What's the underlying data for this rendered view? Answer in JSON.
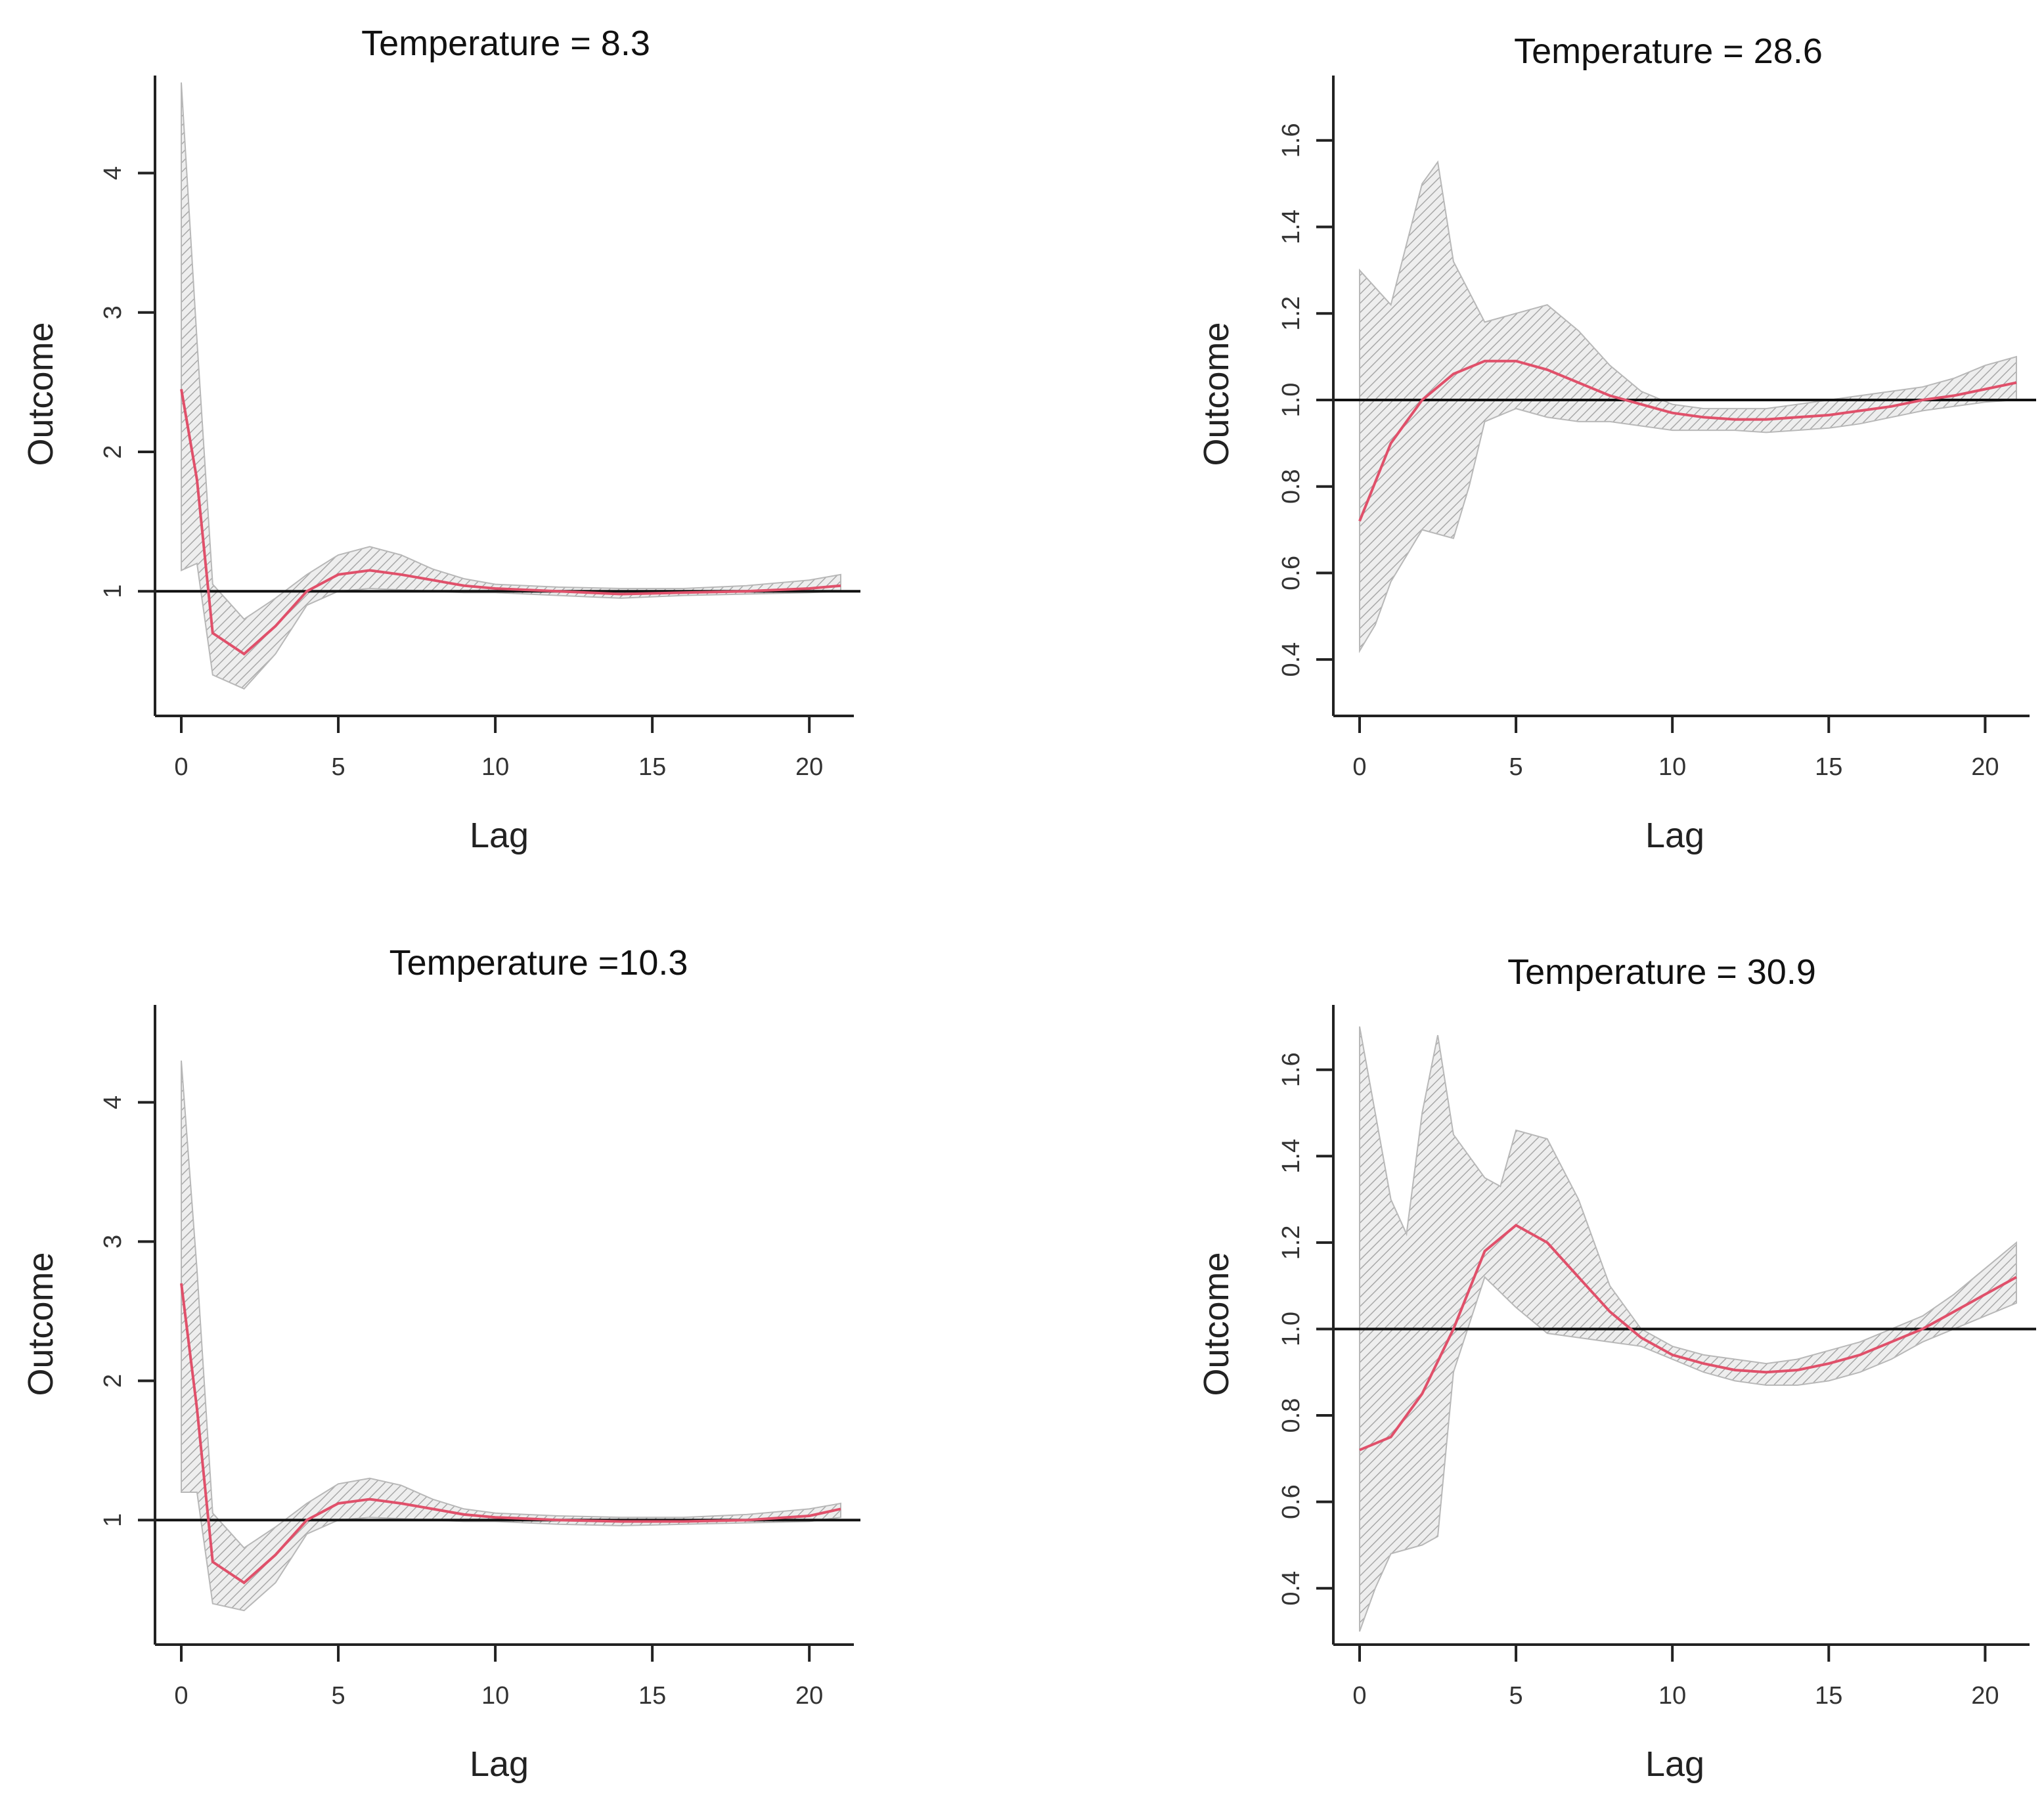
{
  "chart_data": [
    {
      "type": "line",
      "title": "Temperature = 8.3",
      "xlabel": "Lag",
      "ylabel": "Outcome",
      "xlim": [
        0,
        21
      ],
      "ylim": [
        0.2,
        4.7
      ],
      "xticks": [
        0,
        5,
        10,
        15,
        20
      ],
      "yticks": [
        1,
        2,
        3,
        4
      ],
      "reference_y": 1,
      "series": [
        {
          "name": "estimate",
          "x": [
            0,
            0.5,
            1,
            2,
            3,
            4,
            5,
            6,
            7,
            8,
            9,
            10,
            12,
            14,
            16,
            18,
            20,
            21
          ],
          "values": [
            2.45,
            1.8,
            0.7,
            0.55,
            0.75,
            1.0,
            1.12,
            1.15,
            1.12,
            1.08,
            1.04,
            1.02,
            1.0,
            0.98,
            0.99,
            1.0,
            1.02,
            1.04
          ]
        },
        {
          "name": "ci_upper",
          "x": [
            0,
            0.5,
            1,
            2,
            3,
            4,
            5,
            6,
            7,
            8,
            9,
            10,
            12,
            14,
            16,
            18,
            20,
            21
          ],
          "values": [
            4.65,
            2.8,
            1.05,
            0.8,
            0.95,
            1.12,
            1.26,
            1.32,
            1.26,
            1.16,
            1.09,
            1.05,
            1.03,
            1.02,
            1.02,
            1.04,
            1.08,
            1.12
          ]
        },
        {
          "name": "ci_lower",
          "x": [
            0,
            0.5,
            1,
            2,
            3,
            4,
            5,
            6,
            7,
            8,
            9,
            10,
            12,
            14,
            16,
            18,
            20,
            21
          ],
          "values": [
            1.15,
            1.2,
            0.4,
            0.3,
            0.55,
            0.9,
            1.0,
            1.02,
            1.01,
            1.0,
            0.99,
            0.99,
            0.97,
            0.95,
            0.97,
            0.98,
            0.99,
            1.0
          ]
        }
      ]
    },
    {
      "type": "line",
      "title": "Temperature = 28.6",
      "xlabel": "Lag",
      "ylabel": "Outcome",
      "xlim": [
        0,
        21
      ],
      "ylim": [
        0.3,
        1.75
      ],
      "xticks": [
        0,
        5,
        10,
        15,
        20
      ],
      "yticks": [
        "0.4",
        "0.6",
        "0.8",
        "1.0",
        "1.2",
        "1.4",
        "1.6"
      ],
      "reference_y": 1.0,
      "series": [
        {
          "name": "estimate",
          "x": [
            0,
            1,
            2,
            3,
            4,
            5,
            6,
            7,
            8,
            9,
            10,
            11,
            12,
            13,
            14,
            15,
            16,
            17,
            18,
            19,
            20,
            21
          ],
          "values": [
            0.72,
            0.9,
            1.0,
            1.06,
            1.09,
            1.09,
            1.07,
            1.04,
            1.01,
            0.99,
            0.97,
            0.96,
            0.955,
            0.955,
            0.96,
            0.965,
            0.975,
            0.985,
            1.0,
            1.01,
            1.025,
            1.04
          ]
        },
        {
          "name": "ci_upper",
          "x": [
            0,
            1,
            2,
            2.5,
            3,
            4,
            5,
            6,
            7,
            8,
            9,
            10,
            11,
            12,
            13,
            14,
            15,
            16,
            17,
            18,
            19,
            20,
            21
          ],
          "values": [
            1.3,
            1.22,
            1.5,
            1.55,
            1.32,
            1.18,
            1.2,
            1.22,
            1.16,
            1.08,
            1.02,
            0.99,
            0.98,
            0.98,
            0.98,
            0.99,
            1.0,
            1.01,
            1.02,
            1.03,
            1.05,
            1.08,
            1.1
          ]
        },
        {
          "name": "ci_lower",
          "x": [
            0,
            0.5,
            1,
            2,
            3,
            3.5,
            4,
            5,
            6,
            7,
            8,
            9,
            10,
            11,
            12,
            13,
            14,
            15,
            16,
            17,
            18,
            19,
            20,
            21
          ],
          "values": [
            0.42,
            0.48,
            0.58,
            0.7,
            0.68,
            0.8,
            0.95,
            0.98,
            0.96,
            0.95,
            0.95,
            0.94,
            0.93,
            0.93,
            0.93,
            0.925,
            0.93,
            0.935,
            0.945,
            0.96,
            0.975,
            0.985,
            0.995,
            1.0
          ]
        }
      ]
    },
    {
      "type": "line",
      "title": "Temperature =10.3",
      "xlabel": "Lag",
      "ylabel": "Outcome",
      "xlim": [
        0,
        21
      ],
      "ylim": [
        0.2,
        4.7
      ],
      "xticks": [
        0,
        5,
        10,
        15,
        20
      ],
      "yticks": [
        1,
        2,
        3,
        4
      ],
      "reference_y": 1,
      "series": [
        {
          "name": "estimate",
          "x": [
            0,
            0.5,
            1,
            2,
            3,
            4,
            5,
            6,
            7,
            8,
            9,
            10,
            12,
            14,
            16,
            18,
            20,
            21
          ],
          "values": [
            2.7,
            1.8,
            0.7,
            0.55,
            0.75,
            1.0,
            1.12,
            1.15,
            1.12,
            1.08,
            1.04,
            1.02,
            1.0,
            0.99,
            0.99,
            1.0,
            1.03,
            1.08
          ]
        },
        {
          "name": "ci_upper",
          "x": [
            0,
            0.5,
            1,
            2,
            3,
            4,
            5,
            6,
            7,
            8,
            9,
            10,
            12,
            14,
            16,
            18,
            20,
            21
          ],
          "values": [
            4.3,
            2.8,
            1.05,
            0.8,
            0.95,
            1.12,
            1.26,
            1.3,
            1.25,
            1.15,
            1.08,
            1.05,
            1.03,
            1.02,
            1.02,
            1.04,
            1.08,
            1.12
          ]
        },
        {
          "name": "ci_lower",
          "x": [
            0,
            0.5,
            1,
            2,
            3,
            4,
            5,
            6,
            7,
            8,
            9,
            10,
            12,
            14,
            16,
            18,
            20,
            21
          ],
          "values": [
            1.2,
            1.2,
            0.4,
            0.35,
            0.55,
            0.9,
            1.0,
            1.02,
            1.01,
            1.0,
            0.99,
            0.99,
            0.97,
            0.96,
            0.97,
            0.98,
            0.99,
            1.02
          ]
        }
      ]
    },
    {
      "type": "line",
      "title": "Temperature = 30.9",
      "xlabel": "Lag",
      "ylabel": "Outcome",
      "xlim": [
        0,
        21
      ],
      "ylim": [
        0.3,
        1.75
      ],
      "xticks": [
        0,
        5,
        10,
        15,
        20
      ],
      "yticks": [
        "0.4",
        "0.6",
        "0.8",
        "1.0",
        "1.2",
        "1.4",
        "1.6"
      ],
      "reference_y": 1.0,
      "series": [
        {
          "name": "estimate",
          "x": [
            0,
            1,
            2,
            3,
            4,
            5,
            6,
            7,
            8,
            9,
            10,
            11,
            12,
            13,
            14,
            15,
            16,
            17,
            18,
            19,
            20,
            21
          ],
          "values": [
            0.72,
            0.75,
            0.85,
            1.0,
            1.18,
            1.24,
            1.2,
            1.12,
            1.04,
            0.98,
            0.94,
            0.92,
            0.905,
            0.9,
            0.905,
            0.92,
            0.94,
            0.97,
            1.0,
            1.04,
            1.08,
            1.12
          ]
        },
        {
          "name": "ci_upper",
          "x": [
            0,
            1,
            1.5,
            2,
            2.5,
            3,
            4,
            4.5,
            5,
            6,
            7,
            8,
            9,
            10,
            11,
            12,
            13,
            14,
            15,
            16,
            17,
            18,
            19,
            20,
            21
          ],
          "values": [
            1.7,
            1.3,
            1.22,
            1.5,
            1.68,
            1.45,
            1.35,
            1.33,
            1.46,
            1.44,
            1.3,
            1.1,
            1.0,
            0.96,
            0.94,
            0.93,
            0.92,
            0.93,
            0.95,
            0.97,
            1.0,
            1.03,
            1.08,
            1.14,
            1.2
          ]
        },
        {
          "name": "ci_lower",
          "x": [
            0,
            0.5,
            1,
            2,
            2.5,
            3,
            4,
            5,
            6,
            7,
            8,
            9,
            10,
            11,
            12,
            13,
            14,
            15,
            16,
            17,
            18,
            19,
            20,
            21
          ],
          "values": [
            0.3,
            0.4,
            0.48,
            0.5,
            0.52,
            0.9,
            1.12,
            1.05,
            0.99,
            0.98,
            0.97,
            0.96,
            0.93,
            0.9,
            0.88,
            0.87,
            0.87,
            0.88,
            0.9,
            0.93,
            0.97,
            1.0,
            1.03,
            1.06
          ]
        }
      ]
    }
  ]
}
